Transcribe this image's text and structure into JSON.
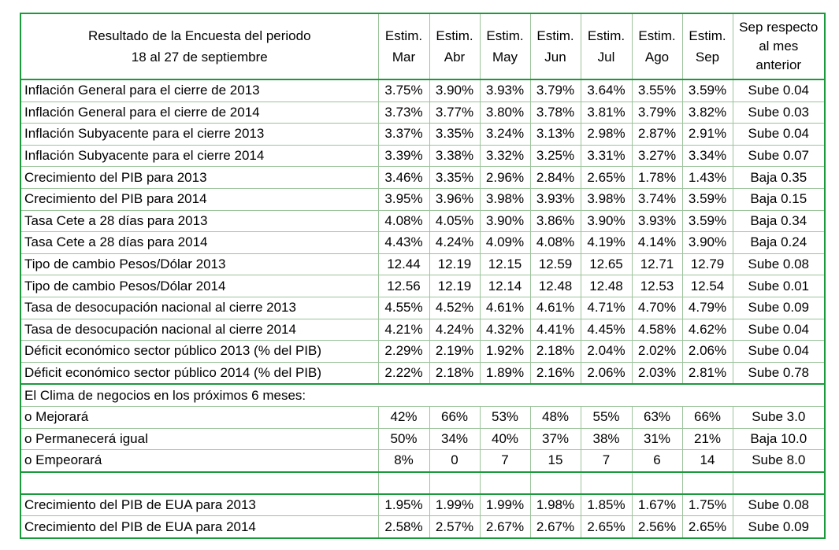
{
  "header": {
    "title_line1": "Resultado de la Encuesta del periodo",
    "title_line2": "18 al 27 de septiembre",
    "cols": [
      {
        "l1": "Estim.",
        "l2": "Mar"
      },
      {
        "l1": "Estim.",
        "l2": "Abr"
      },
      {
        "l1": "Estim.",
        "l2": "May"
      },
      {
        "l1": "Estim.",
        "l2": "Jun"
      },
      {
        "l1": "Estim.",
        "l2": "Jul"
      },
      {
        "l1": "Estim.",
        "l2": "Ago"
      },
      {
        "l1": "Estim.",
        "l2": "Sep"
      }
    ],
    "last_col": {
      "l1": "Sep respecto",
      "l2": "al mes",
      "l3": "anterior"
    }
  },
  "rows_a": [
    {
      "label": "Inflación General para el cierre de 2013",
      "v": [
        "3.75%",
        "3.90%",
        "3.93%",
        "3.79%",
        "3.64%",
        "3.55%",
        "3.59%"
      ],
      "change": "Sube 0.04"
    },
    {
      "label": "Inflación General para el cierre de 2014",
      "v": [
        "3.73%",
        "3.77%",
        "3.80%",
        "3.78%",
        "3.81%",
        "3.79%",
        "3.82%"
      ],
      "change": "Sube 0.03"
    },
    {
      "label": "Inflación Subyacente para el cierre 2013",
      "v": [
        "3.37%",
        "3.35%",
        "3.24%",
        "3.13%",
        "2.98%",
        "2.87%",
        "2.91%"
      ],
      "change": "Sube 0.04"
    },
    {
      "label": "Inflación Subyacente para el cierre 2014",
      "v": [
        "3.39%",
        "3.38%",
        "3.32%",
        "3.25%",
        "3.31%",
        "3.27%",
        "3.34%"
      ],
      "change": "Sube 0.07"
    },
    {
      "label": "Crecimiento del PIB para 2013",
      "v": [
        "3.46%",
        "3.35%",
        "2.96%",
        "2.84%",
        "2.65%",
        "1.78%",
        "1.43%"
      ],
      "change": "Baja 0.35"
    },
    {
      "label": "Crecimiento del PIB para 2014",
      "v": [
        "3.95%",
        "3.96%",
        "3.98%",
        "3.93%",
        "3.98%",
        "3.74%",
        "3.59%"
      ],
      "change": "Baja 0.15"
    },
    {
      "label": "Tasa Cete a 28 días para 2013",
      "v": [
        "4.08%",
        "4.05%",
        "3.90%",
        "3.86%",
        "3.90%",
        "3.93%",
        "3.59%"
      ],
      "change": "Baja 0.34"
    },
    {
      "label": "Tasa Cete a 28 días para 2014",
      "v": [
        "4.43%",
        "4.24%",
        "4.09%",
        "4.08%",
        "4.19%",
        "4.14%",
        "3.90%"
      ],
      "change": "Baja 0.24"
    },
    {
      "label": "Tipo de cambio Pesos/Dólar 2013",
      "v": [
        "12.44",
        "12.19",
        "12.15",
        "12.59",
        "12.65",
        "12.71",
        "12.79"
      ],
      "change": "Sube 0.08"
    },
    {
      "label": "Tipo de cambio Pesos/Dólar 2014",
      "v": [
        "12.56",
        "12.19",
        "12.14",
        "12.48",
        "12.48",
        "12.53",
        "12.54"
      ],
      "change": "Sube 0.01"
    },
    {
      "label": "Tasa de desocupación nacional al cierre 2013",
      "v": [
        "4.55%",
        "4.52%",
        "4.61%",
        "4.61%",
        "4.71%",
        "4.70%",
        "4.79%"
      ],
      "change": "Sube 0.09"
    },
    {
      "label": "Tasa de desocupación nacional al cierre 2014",
      "v": [
        "4.21%",
        "4.24%",
        "4.32%",
        "4.41%",
        "4.45%",
        "4.58%",
        "4.62%"
      ],
      "change": "Sube 0.04"
    },
    {
      "label": "Déficit económico sector público 2013 (% del PIB)",
      "v": [
        "2.29%",
        "2.19%",
        "1.92%",
        "2.18%",
        "2.04%",
        "2.02%",
        "2.06%"
      ],
      "change": "Sube 0.04"
    },
    {
      "label": "Déficit económico sector público 2014 (% del PIB)",
      "v": [
        "2.22%",
        "2.18%",
        "1.89%",
        "2.16%",
        "2.06%",
        "2.03%",
        "2.81%"
      ],
      "change": "Sube 0.78"
    }
  ],
  "clima_title": "El Clima de negocios en los próximos 6 meses:",
  "rows_b": [
    {
      "label": "o Mejorará",
      "v": [
        "42%",
        "66%",
        "53%",
        "48%",
        "55%",
        "63%",
        "66%"
      ],
      "change": "Sube 3.0"
    },
    {
      "label": "o Permanecerá igual",
      "v": [
        "50%",
        "34%",
        "40%",
        "37%",
        "38%",
        "31%",
        "21%"
      ],
      "change": "Baja 10.0"
    },
    {
      "label": "o Empeorará",
      "v": [
        "8%",
        "0",
        "7",
        "15",
        "7",
        "6",
        "14"
      ],
      "change": "Sube 8.0"
    }
  ],
  "rows_c": [
    {
      "label": "Crecimiento del PIB de EUA para 2013",
      "v": [
        "1.95%",
        "1.99%",
        "1.99%",
        "1.98%",
        "1.85%",
        "1.67%",
        "1.75%"
      ],
      "change": "Sube 0.08"
    },
    {
      "label": "Crecimiento del PIB de EUA para 2014",
      "v": [
        "2.58%",
        "2.57%",
        "2.67%",
        "2.67%",
        "2.65%",
        "2.56%",
        "2.65%"
      ],
      "change": "Sube 0.09"
    }
  ]
}
